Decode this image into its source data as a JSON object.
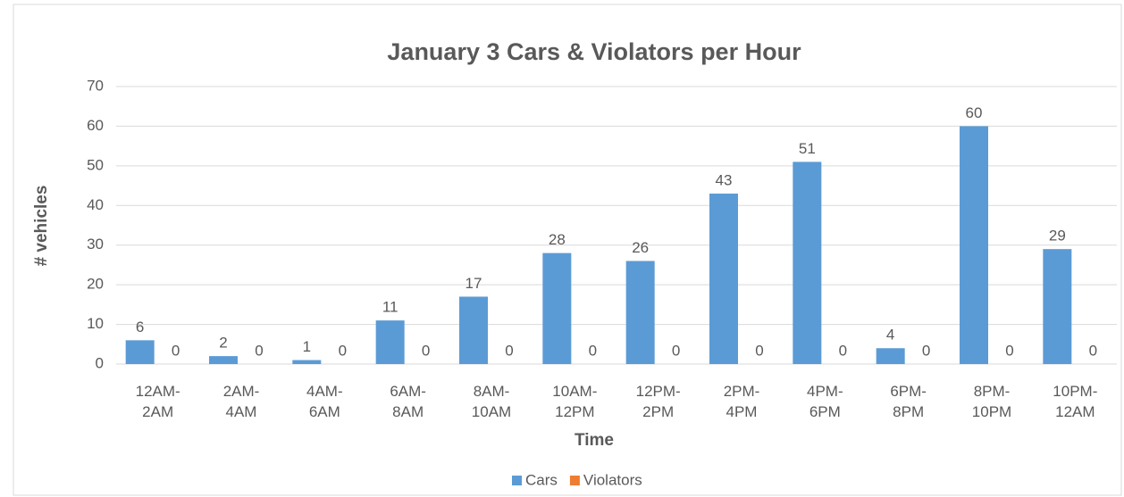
{
  "chart_data": {
    "type": "bar",
    "title": "January 3 Cars & Violators per Hour",
    "y_axis_label": "# vehicles",
    "x_axis_label": "Time",
    "categories": [
      "12AM-2AM",
      "2AM-4AM",
      "4AM-6AM",
      "6AM-8AM",
      "8AM-10AM",
      "10AM-12PM",
      "12PM-2PM",
      "2PM-4PM",
      "4PM-6PM",
      "6PM-8PM",
      "8PM-10PM",
      "10PM-12AM"
    ],
    "series": [
      {
        "name": "Cars",
        "color": "#5b9bd5",
        "values": [
          6,
          2,
          1,
          11,
          17,
          28,
          26,
          43,
          51,
          4,
          60,
          29
        ]
      },
      {
        "name": "Violators",
        "color": "#ed7d31",
        "values": [
          0,
          0,
          0,
          0,
          0,
          0,
          0,
          0,
          0,
          0,
          0,
          0
        ]
      }
    ],
    "ylim": [
      0,
      70
    ],
    "yticks": [
      0,
      10,
      20,
      30,
      40,
      50,
      60,
      70
    ],
    "grid": true,
    "legend": "bottom"
  }
}
